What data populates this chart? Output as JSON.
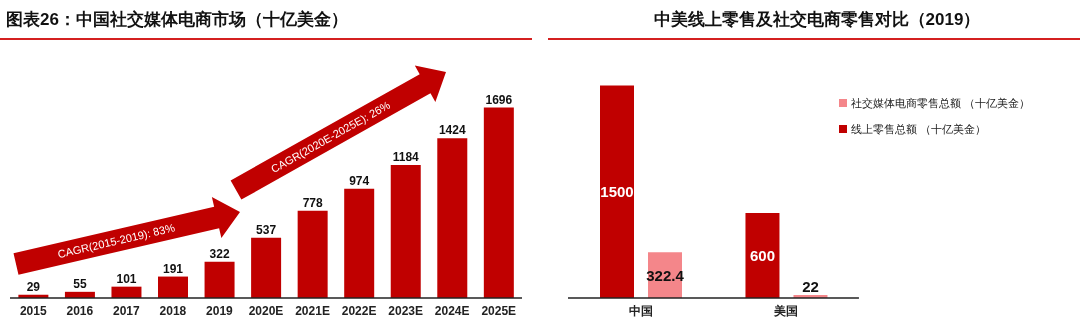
{
  "chart_data": [
    {
      "type": "bar",
      "title": "图表26：中国社交媒体电商市场（十亿美金）",
      "categories": [
        "2015",
        "2016",
        "2017",
        "2018",
        "2019",
        "2020E",
        "2021E",
        "2022E",
        "2023E",
        "2024E",
        "2025E"
      ],
      "values": [
        29,
        55,
        101,
        191,
        322,
        537,
        778,
        974,
        1184,
        1424,
        1696
      ],
      "color": "#c00000",
      "data_labels": true,
      "annotations": [
        "CAGR(2015-2019): 83%",
        "CAGR(2020E-2025E): 26%"
      ]
    },
    {
      "type": "bar",
      "title": "中美线上零售及社交电商零售对比（2019）",
      "categories": [
        "中国",
        "美国"
      ],
      "series": [
        {
          "name": "线上零售总额 （十亿美金）",
          "color": "#c00000",
          "values": [
            1500,
            600
          ]
        },
        {
          "name": "社交媒体电商零售总额 （十亿美金）",
          "color": "#f4868a",
          "values": [
            322.4,
            22
          ]
        }
      ],
      "data_labels": true,
      "legend": "top right"
    }
  ]
}
